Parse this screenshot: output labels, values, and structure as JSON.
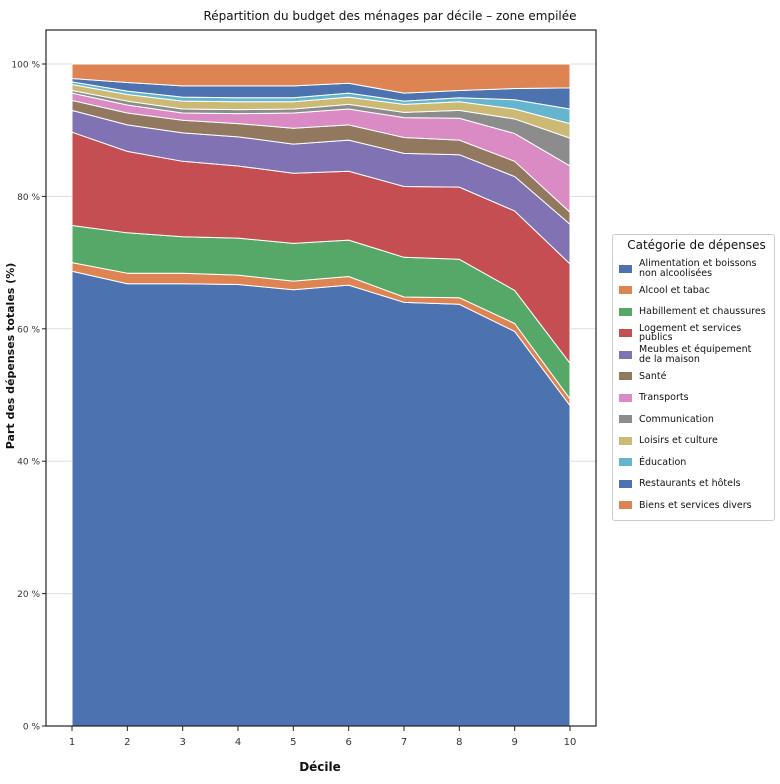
{
  "chart_data": {
    "type": "area",
    "title": "Répartition du budget des ménages par décile – zone empilée",
    "xlabel": "Décile",
    "ylabel": "Part des dépenses totales (%)",
    "x": [
      1,
      2,
      3,
      4,
      5,
      6,
      7,
      8,
      9,
      10
    ],
    "x_tick_labels": [
      "1",
      "2",
      "3",
      "4",
      "5",
      "6",
      "7",
      "8",
      "9",
      "10"
    ],
    "ylim": [
      0,
      100
    ],
    "y_ticks": [
      0,
      20,
      40,
      60,
      80,
      100
    ],
    "y_tick_labels": [
      "0 %",
      "20 %",
      "40 %",
      "60 %",
      "80 %",
      "100 %"
    ],
    "grid": "horizontal",
    "legend_placement": "right",
    "legend_title": "Catégorie de dépenses",
    "series": [
      {
        "name": "Alimentation et boissons\nnon alcoolisées",
        "color": "#4c72b0",
        "values": [
          68.7,
          66.8,
          66.8,
          66.7,
          65.9,
          66.6,
          64.0,
          63.7,
          59.6,
          48.4
        ]
      },
      {
        "name": "Alcool et tabac",
        "color": "#dd8452",
        "values": [
          1.3,
          1.6,
          1.6,
          1.4,
          1.3,
          1.3,
          0.8,
          1.0,
          1.2,
          1.0
        ]
      },
      {
        "name": "Habillement et chaussures",
        "color": "#55a868",
        "values": [
          5.6,
          6.1,
          5.5,
          5.6,
          5.7,
          5.5,
          6.0,
          5.8,
          5.0,
          5.4
        ]
      },
      {
        "name": "Logement et services publics",
        "color": "#c44e52",
        "values": [
          14.1,
          12.3,
          11.4,
          10.9,
          10.6,
          10.4,
          10.7,
          10.9,
          12.0,
          15.0
        ]
      },
      {
        "name": "Meubles et équipement\nde la maison",
        "color": "#8172b3",
        "values": [
          3.3,
          4.0,
          4.3,
          4.4,
          4.4,
          4.7,
          5.0,
          4.9,
          5.2,
          6.0
        ]
      },
      {
        "name": "Santé",
        "color": "#937860",
        "values": [
          1.5,
          1.8,
          1.9,
          2.0,
          2.4,
          2.3,
          2.4,
          2.2,
          2.3,
          1.8
        ]
      },
      {
        "name": "Transports",
        "color": "#da8bc3",
        "values": [
          1.1,
          1.2,
          1.1,
          1.5,
          2.3,
          2.4,
          3.0,
          3.3,
          4.2,
          7.0
        ]
      },
      {
        "name": "Communication",
        "color": "#8c8c8c",
        "values": [
          0.4,
          0.6,
          0.6,
          0.6,
          0.6,
          0.7,
          0.8,
          1.2,
          2.2,
          4.2
        ]
      },
      {
        "name": "Loisirs et culture",
        "color": "#ccb974",
        "values": [
          0.9,
          1.0,
          1.2,
          1.2,
          1.1,
          1.1,
          1.2,
          1.3,
          1.5,
          2.2
        ]
      },
      {
        "name": "Éducation",
        "color": "#64b5cd",
        "values": [
          0.4,
          0.5,
          0.6,
          0.6,
          0.6,
          0.6,
          0.5,
          0.6,
          1.4,
          2.2
        ]
      },
      {
        "name": "Restaurants et hôtels",
        "color": "#4c72b0",
        "values": [
          0.5,
          1.3,
          1.7,
          1.8,
          1.8,
          1.5,
          1.2,
          1.1,
          1.7,
          3.2
        ]
      },
      {
        "name": "Biens et services divers",
        "color": "#dd8452",
        "values": [
          2.2,
          2.8,
          3.3,
          3.3,
          3.3,
          2.9,
          4.4,
          4.0,
          3.7,
          3.6
        ]
      }
    ]
  }
}
